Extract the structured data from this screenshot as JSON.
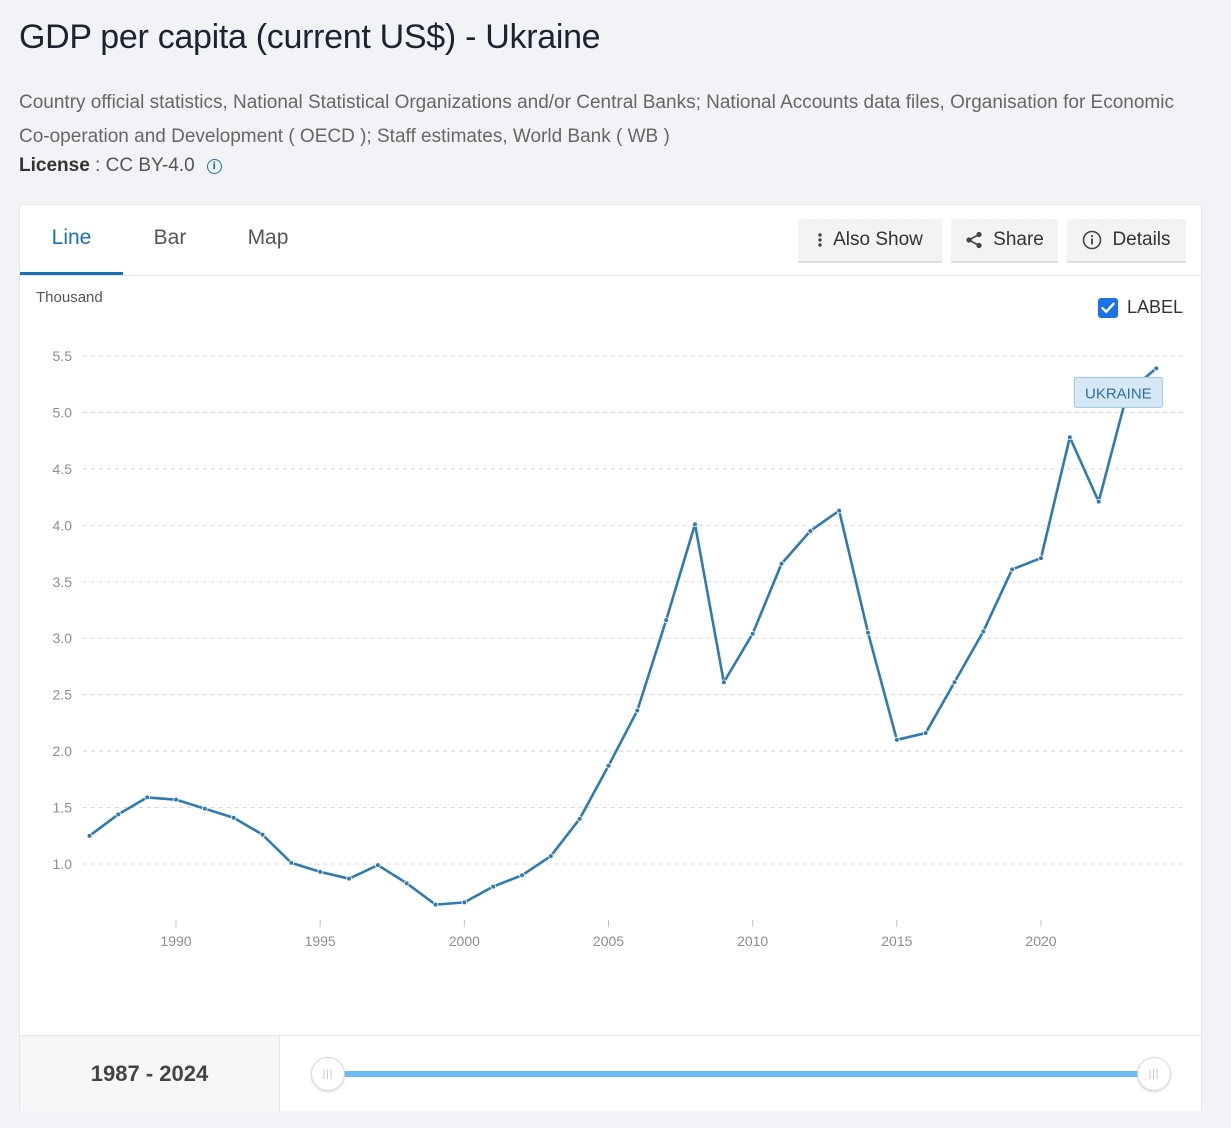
{
  "title": "GDP per capita (current US$) - Ukraine",
  "source": "Country official statistics, National Statistical Organizations and/or Central Banks; National Accounts data files, Organisation for Economic Co-operation and Development ( OECD ); Staff estimates, World Bank ( WB )",
  "license": {
    "label": "License",
    "sep": " : ",
    "value": "CC BY-4.0",
    "icon": "info-icon"
  },
  "tabs": [
    {
      "label": "Line",
      "active": true
    },
    {
      "label": "Bar",
      "active": false
    },
    {
      "label": "Map",
      "active": false
    }
  ],
  "toolbar": {
    "also_show": {
      "label": "Also Show",
      "icon": "vertical-dots-icon"
    },
    "share": {
      "label": "Share",
      "icon": "share-icon"
    },
    "details": {
      "label": "Details",
      "icon": "info-icon"
    }
  },
  "label_toggle": {
    "label": "LABEL",
    "checked": true
  },
  "range": {
    "label": "1987 - 2024",
    "start": 1987,
    "end": 2024
  },
  "colors": {
    "series": "#2e7bb4",
    "accent": "#1a6fb5",
    "label_bg": "#d6e8f5",
    "slider": "#6bbdf0"
  },
  "chart_data": {
    "type": "line",
    "title": "GDP per capita (current US$) - Ukraine",
    "ylabel": "Thousand",
    "xlabel": "",
    "ylim": [
      0.5,
      5.5
    ],
    "xlim": [
      1987,
      2024
    ],
    "yticks": [
      1.0,
      1.5,
      2.0,
      2.5,
      3.0,
      3.5,
      4.0,
      4.5,
      5.0,
      5.5
    ],
    "ytick_labels": [
      "1.0",
      "1.5",
      "2.0",
      "2.5",
      "3.0",
      "3.5",
      "4.0",
      "4.5",
      "5.0",
      "5.5"
    ],
    "xticks": [
      1990,
      1995,
      2000,
      2005,
      2010,
      2015,
      2020
    ],
    "xtick_labels": [
      "1990",
      "1995",
      "2000",
      "2005",
      "2010",
      "2015",
      "2020"
    ],
    "grid": "horizontal dashed",
    "series": [
      {
        "name": "UKRAINE",
        "x": [
          1987,
          1988,
          1989,
          1990,
          1991,
          1992,
          1993,
          1994,
          1995,
          1996,
          1997,
          1998,
          1999,
          2000,
          2001,
          2002,
          2003,
          2004,
          2005,
          2006,
          2007,
          2008,
          2009,
          2010,
          2011,
          2012,
          2013,
          2014,
          2015,
          2016,
          2017,
          2018,
          2019,
          2020,
          2021,
          2022,
          2023,
          2024
        ],
        "y": [
          1.25,
          1.44,
          1.59,
          1.57,
          1.49,
          1.41,
          1.26,
          1.01,
          0.93,
          0.87,
          0.99,
          0.83,
          0.64,
          0.66,
          0.8,
          0.9,
          1.07,
          1.4,
          1.87,
          2.36,
          3.16,
          4.01,
          2.61,
          3.04,
          3.66,
          3.95,
          4.13,
          3.05,
          2.1,
          2.16,
          2.61,
          3.06,
          3.61,
          3.71,
          4.78,
          4.21,
          5.18,
          5.39
        ]
      }
    ]
  }
}
